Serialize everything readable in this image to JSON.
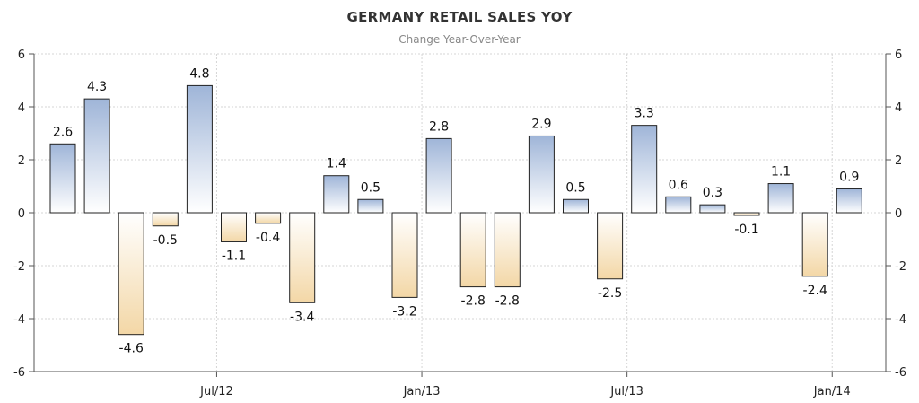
{
  "chart_data": {
    "type": "bar",
    "title": "GERMANY RETAIL SALES YOY",
    "subtitle": "Change Year-Over-Year",
    "xlabel": "",
    "ylabel": "",
    "ylim": [
      -6,
      6
    ],
    "yticks": [
      -6,
      -4,
      -2,
      0,
      2,
      4,
      6
    ],
    "values": [
      2.6,
      4.3,
      -4.6,
      -0.5,
      4.8,
      -1.1,
      -0.4,
      -3.4,
      1.4,
      0.5,
      -3.2,
      2.8,
      -2.8,
      -2.8,
      2.9,
      0.5,
      -2.5,
      3.3,
      0.6,
      0.3,
      -0.1,
      1.1,
      -2.4,
      0.9
    ],
    "x_tick_labels": [
      "Jul/12",
      "Jan/13",
      "Jul/13",
      "Jan/14"
    ],
    "x_tick_bar_index": [
      4.5,
      10.5,
      16.5,
      22.5
    ],
    "grid": true,
    "colors": {
      "positive_top": "#9fb5d8",
      "positive_bottom": "#ffffff",
      "negative_top": "#ffffff",
      "negative_bottom": "#f3d7a6",
      "bar_stroke": "#222222",
      "grid": "#d5d5d5",
      "axis": "#555555"
    }
  }
}
